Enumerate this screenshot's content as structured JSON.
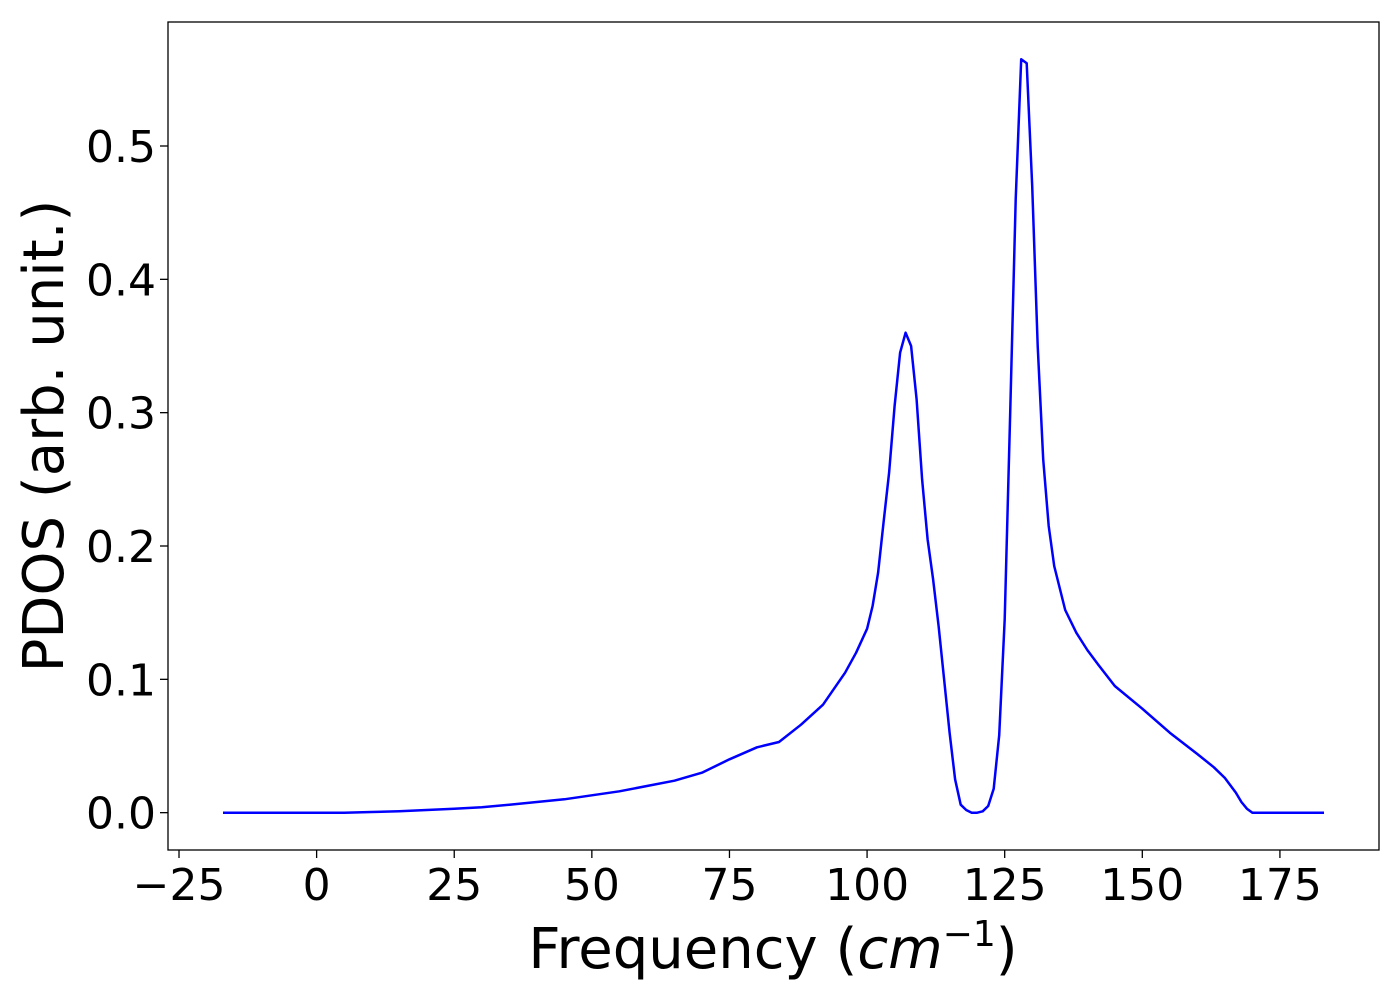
{
  "chart_data": {
    "type": "line",
    "xlabel": "Frequency (",
    "xlabel_math": "cm",
    "xlabel_sup": "−1",
    "xlabel_close": ")",
    "ylabel": "PDOS (arb. unit.)",
    "xlim": [
      -27,
      193
    ],
    "ylim": [
      -0.028,
      0.593
    ],
    "x_ticks": [
      -25,
      0,
      25,
      50,
      75,
      100,
      125,
      150,
      175
    ],
    "x_tick_labels": [
      "−25",
      "0",
      "25",
      "50",
      "75",
      "100",
      "125",
      "150",
      "175"
    ],
    "y_ticks": [
      0.0,
      0.1,
      0.2,
      0.3,
      0.4,
      0.5
    ],
    "y_tick_labels": [
      "0.0",
      "0.1",
      "0.2",
      "0.3",
      "0.4",
      "0.5"
    ],
    "grid": false,
    "line_color": "#0000ff",
    "series": [
      {
        "name": "",
        "x": [
          -17,
          -5,
          5,
          10,
          15,
          20,
          25,
          30,
          35,
          40,
          45,
          50,
          55,
          60,
          65,
          70,
          75,
          80,
          84,
          88,
          92,
          96,
          98,
          100,
          101,
          102,
          103,
          104,
          105,
          106,
          107,
          108,
          109,
          110,
          111,
          112,
          113,
          114,
          115,
          116,
          117,
          118,
          119,
          120,
          121,
          122,
          123,
          124,
          125,
          126,
          127,
          128,
          129,
          130,
          131,
          132,
          133,
          134,
          136,
          138,
          140,
          142,
          145,
          150,
          155,
          160,
          163,
          165,
          167,
          168,
          169,
          170,
          175,
          183
        ],
        "y": [
          0.0,
          0.0,
          0.0,
          0.0005,
          0.001,
          0.002,
          0.003,
          0.004,
          0.006,
          0.008,
          0.01,
          0.013,
          0.016,
          0.02,
          0.024,
          0.03,
          0.04,
          0.049,
          0.053,
          0.066,
          0.081,
          0.105,
          0.12,
          0.138,
          0.155,
          0.18,
          0.218,
          0.255,
          0.305,
          0.345,
          0.36,
          0.35,
          0.31,
          0.25,
          0.205,
          0.175,
          0.14,
          0.1,
          0.06,
          0.025,
          0.006,
          0.002,
          0.0,
          0.0,
          0.001,
          0.005,
          0.018,
          0.058,
          0.145,
          0.3,
          0.46,
          0.565,
          0.562,
          0.47,
          0.35,
          0.265,
          0.215,
          0.185,
          0.152,
          0.135,
          0.122,
          0.111,
          0.095,
          0.078,
          0.06,
          0.044,
          0.034,
          0.026,
          0.015,
          0.008,
          0.003,
          0.0,
          0.0,
          0.0
        ]
      }
    ]
  }
}
